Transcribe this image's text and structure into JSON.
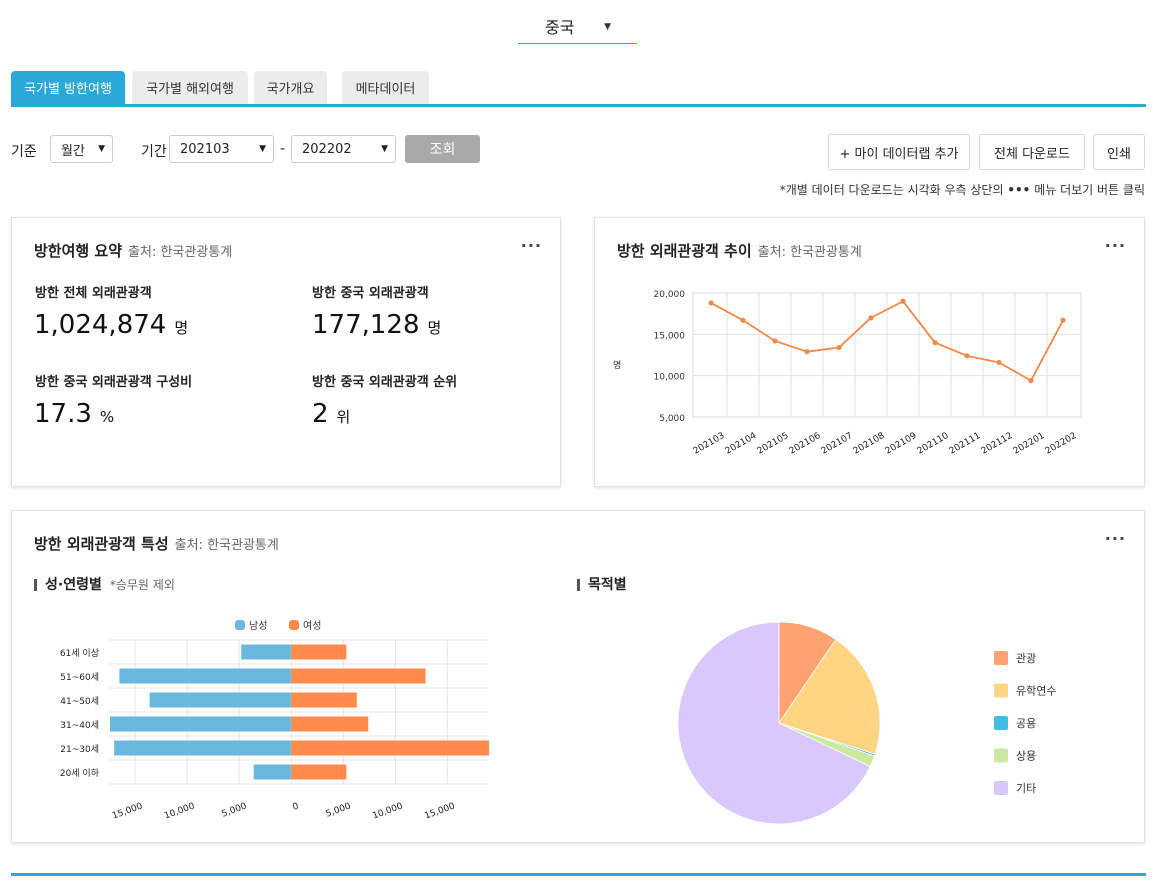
{
  "country": {
    "selected": "중국"
  },
  "tabs": [
    {
      "label": "국가별 방한여행",
      "active": true
    },
    {
      "label": "국가별 해외여행"
    },
    {
      "label": "국가개요"
    },
    {
      "label": "메타데이터"
    }
  ],
  "filters": {
    "basis_label": "기준",
    "basis_value": "월간",
    "period_label": "기간",
    "period_from": "202103",
    "period_sep": "-",
    "period_to": "202202",
    "query_button": "조회"
  },
  "actions": {
    "add_lab": "+ 마이 데이터랩 추가",
    "download_all": "전체 다운로드",
    "print": "인쇄"
  },
  "note": "*개별 데이터 다운로드는 시각화 우측 상단의",
  "note_tail": "메뉴 더보기 버튼 클릭",
  "summary": {
    "title": "방한여행 요약",
    "source": "출처: 한국관광통계",
    "more": "···",
    "stats": [
      {
        "label": "방한 전체 외래관광객",
        "value": "1,024,874",
        "unit": "명"
      },
      {
        "label": "방한 중국 외래관광객",
        "value": "177,128",
        "unit": "명"
      },
      {
        "label": "방한 중국 외래관광객 구성비",
        "value": "17.3",
        "unit": "%"
      },
      {
        "label": "방한 중국 외래관광객 순위",
        "value": "2",
        "unit": "위"
      }
    ]
  },
  "trend": {
    "title": "방한 외래관광객 추이",
    "source": "출처: 한국관광통계",
    "more": "···"
  },
  "characteristics": {
    "title": "방한 외래관광객 특성",
    "source": "출처: 한국관광통계",
    "more": "···",
    "age_title": "성·연령별",
    "age_note": "*승무원 제외",
    "purpose_title": "목적별"
  },
  "colors": {
    "accent": "#2aa8d8",
    "male": "#6bb8de",
    "female": "#ff8a4a",
    "line": "#f08a4b"
  },
  "chart_data": [
    {
      "type": "line",
      "ylabel": "명",
      "x": [
        "202103",
        "202104",
        "202105",
        "202106",
        "202107",
        "202108",
        "202109",
        "202110",
        "202111",
        "202112",
        "202201",
        "202202"
      ],
      "series": [
        {
          "values": [
            18800,
            16700,
            14200,
            12900,
            13400,
            17000,
            19000,
            14000,
            12400,
            11600,
            9400,
            16700
          ]
        }
      ],
      "ylim": [
        5000,
        20000
      ],
      "yticks": [
        "5,000",
        "10,000",
        "15,000",
        "20,000"
      ],
      "grid": true
    },
    {
      "type": "bar",
      "orientation": "horizontal",
      "categories": [
        "61세 이상",
        "51~60세",
        "41~50세",
        "31~40세",
        "21~30세",
        "20세 이하"
      ],
      "series": [
        {
          "name": "남성",
          "values": [
            4800,
            16500,
            13600,
            17400,
            17000,
            3600
          ]
        },
        {
          "name": "여성",
          "values": [
            5300,
            12900,
            6300,
            7400,
            19000,
            5300
          ]
        }
      ],
      "xticks": [
        "15,000",
        "10,000",
        "5,000",
        "0",
        "5,000",
        "10,000",
        "15,000"
      ],
      "xlim": [
        -17500,
        19000
      ],
      "legend": "top-center"
    },
    {
      "type": "pie",
      "slices": [
        {
          "label": "관광",
          "value": 9.5,
          "color": "#ffa272"
        },
        {
          "label": "유학연수",
          "value": 20.5,
          "color": "#ffd583"
        },
        {
          "label": "공용",
          "value": 0.3,
          "color": "#41bedf"
        },
        {
          "label": "상용",
          "value": 1.8,
          "color": "#cfe8a0"
        },
        {
          "label": "기타",
          "value": 67.9,
          "color": "#d9c8fb"
        }
      ],
      "legend": "right"
    }
  ]
}
